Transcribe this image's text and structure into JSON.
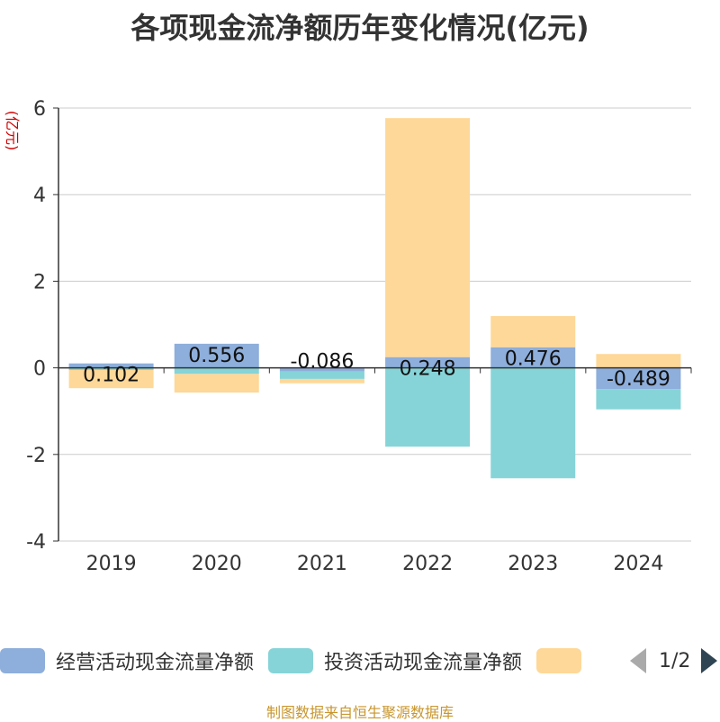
{
  "chart_data": {
    "type": "bar",
    "stacked": true,
    "title": "各项现金流净额历年变化情况(亿元)",
    "ylabel": "(亿元)",
    "ylim": [
      -4,
      6
    ],
    "yticks": [
      6,
      4,
      2,
      0,
      -2,
      -4
    ],
    "grid": true,
    "categories": [
      "2019",
      "2020",
      "2021",
      "2022",
      "2023",
      "2024"
    ],
    "series": [
      {
        "name": "经营活动现金流量净额",
        "color": "#8eaedb",
        "values": [
          0.102,
          0.556,
          -0.086,
          0.248,
          0.476,
          -0.489
        ],
        "labels": [
          "0.102",
          "0.556",
          "-0.086",
          "0.248",
          "0.476",
          "-0.489"
        ]
      },
      {
        "name": "投资活动现金流量净额",
        "color": "#86d4d8",
        "values": [
          -0.05,
          -0.14,
          -0.17,
          -1.82,
          -2.55,
          -0.47
        ]
      },
      {
        "name": "",
        "color": "#fed898",
        "values": [
          -0.42,
          -0.43,
          -0.1,
          5.52,
          0.72,
          0.32
        ]
      }
    ],
    "legend_position": "bottom",
    "legend_page": "1/2"
  },
  "footer": {
    "source": "制图数据来自恒生聚源数据库"
  }
}
